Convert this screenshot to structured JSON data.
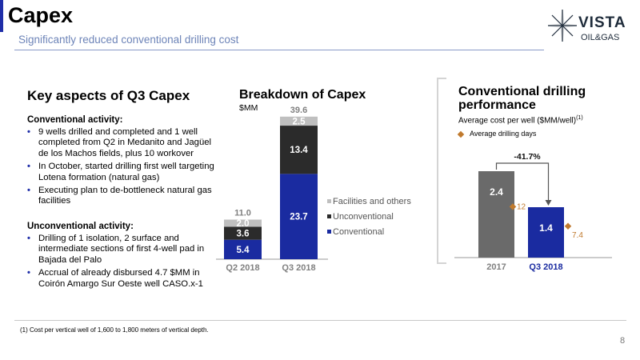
{
  "header": {
    "title": "Capex",
    "subtitle": "Significantly reduced conventional drilling cost",
    "logo_text": "VISTA",
    "logo_sub": "OIL&GAS"
  },
  "key_aspects": {
    "title": "Key aspects of Q3 Capex",
    "conventional_heading": "Conventional activity:",
    "conventional_items": [
      "9 wells drilled and completed and 1 well completed from Q2 in Medanito and Jagüel de los Machos fields, plus 10 workover",
      "In October, started drilling first well targeting Lotena formation (natural gas)",
      "Executing plan to de-bottleneck natural gas facilities"
    ],
    "unconventional_heading": "Unconventional activity:",
    "unconventional_items": [
      "Drilling of 1 isolation, 2 surface and intermediate sections of first 4-well pad in Bajada del Palo",
      "Accrual of already disbursed 4.7 $MM in Coirón Amargo Sur Oeste well CASO.x-1"
    ]
  },
  "capex": {
    "title": "Breakdown of Capex",
    "unit": "$MM"
  },
  "performance": {
    "title": "Conventional drilling performance",
    "subtitle": "Average cost per well ($MM/well)",
    "subtitle_sup": "(1)",
    "legend_days": "Average drilling days"
  },
  "footnote": "(1) Cost per vertical well of 1,600 to 1,800 meters of vertical depth.",
  "page_number": "8",
  "chart_data": [
    {
      "type": "bar",
      "stacked": true,
      "title": "Breakdown of Capex",
      "ylabel": "$MM",
      "categories": [
        "Q2 2018",
        "Q3 2018"
      ],
      "series": [
        {
          "name": "Conventional",
          "values": [
            5.4,
            23.7
          ],
          "color": "#1a2ba0"
        },
        {
          "name": "Unconventional",
          "values": [
            3.6,
            13.4
          ],
          "color": "#2b2b2b"
        },
        {
          "name": "Facilities and others",
          "values": [
            2.0,
            2.5
          ],
          "color": "#bfbfbf"
        }
      ],
      "totals": [
        11.0,
        39.6
      ],
      "total_labels": [
        "11.0",
        "39.6"
      ],
      "value_labels": [
        [
          "5.4",
          "3.6",
          "2.0"
        ],
        [
          "23.7",
          "13.4",
          "2.5"
        ]
      ],
      "legend": "right"
    },
    {
      "type": "bar",
      "title": "Conventional drilling performance",
      "categories": [
        "2017",
        "Q3 2018"
      ],
      "series": [
        {
          "name": "Average cost per well ($MM/well)",
          "values": [
            2.4,
            1.4
          ],
          "labels": [
            "2.4",
            "1.4"
          ],
          "colors": [
            "#6a6a6a",
            "#1a2ba0"
          ]
        },
        {
          "name": "Average drilling days",
          "values": [
            12,
            7.4
          ],
          "labels": [
            "12",
            "7.4"
          ],
          "color": "#c07a2e",
          "marker": "diamond"
        }
      ],
      "annotation": "-41.7%"
    }
  ]
}
